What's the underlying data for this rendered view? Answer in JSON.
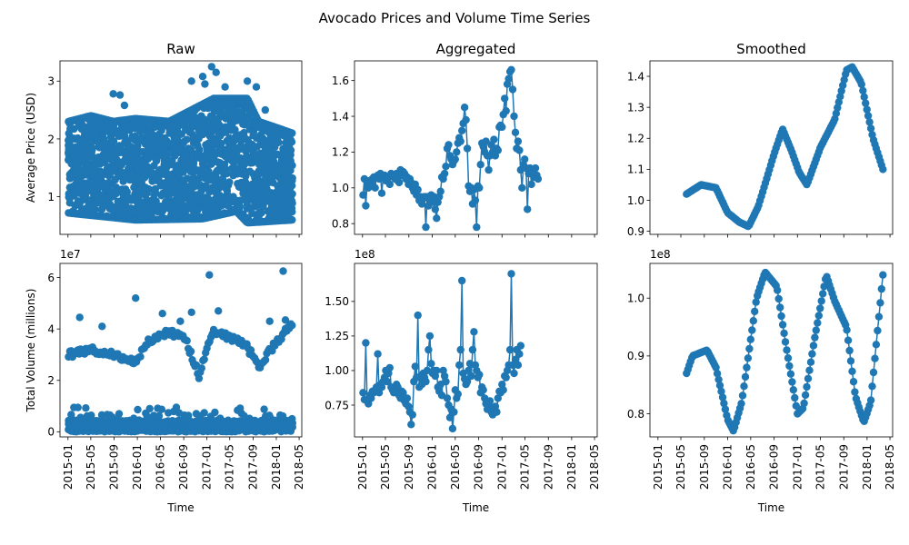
{
  "figure": {
    "title": "Avocado Prices and Volume Time Series",
    "accent": "#1f77b4"
  },
  "chart_data": [
    {
      "id": "price-raw",
      "type": "scatter",
      "column": "Raw",
      "row": "price",
      "title": "Raw",
      "xlabel": "",
      "ylabel": "Average Price (USD)",
      "x_range": [
        "2014-11-20",
        "2018-05-15"
      ],
      "ylim": [
        0.35,
        3.35
      ],
      "yticks": [
        1,
        2,
        3
      ],
      "ytick_labels": [
        "1",
        "2",
        "3"
      ],
      "offset_text": "",
      "scatter_spec": {
        "date_start": "2015-01-04",
        "date_end": "2018-03-25",
        "points_per_week": 10,
        "low": [
          [
            0.0,
            0.72
          ],
          [
            0.3,
            0.6
          ],
          [
            0.6,
            0.62
          ],
          [
            0.75,
            0.75
          ],
          [
            0.8,
            0.55
          ],
          [
            1.0,
            0.6
          ]
        ],
        "high": [
          [
            0.0,
            2.3
          ],
          [
            0.1,
            2.4
          ],
          [
            0.2,
            2.3
          ],
          [
            0.3,
            2.35
          ],
          [
            0.45,
            2.3
          ],
          [
            0.6,
            2.6
          ],
          [
            0.65,
            2.7
          ],
          [
            0.8,
            2.7
          ],
          [
            0.85,
            2.3
          ],
          [
            1.0,
            2.1
          ]
        ],
        "outliers": [
          [
            0.2,
            2.78
          ],
          [
            0.23,
            2.76
          ],
          [
            0.25,
            2.58
          ],
          [
            0.55,
            3.0
          ],
          [
            0.6,
            3.08
          ],
          [
            0.61,
            2.95
          ],
          [
            0.64,
            3.25
          ],
          [
            0.66,
            3.15
          ],
          [
            0.7,
            2.9
          ],
          [
            0.73,
            2.62
          ],
          [
            0.8,
            3.0
          ],
          [
            0.84,
            2.9
          ],
          [
            0.88,
            2.5
          ]
        ]
      }
    },
    {
      "id": "price-agg",
      "type": "line",
      "column": "Aggregated",
      "row": "price",
      "title": "Aggregated",
      "xlabel": "",
      "ylabel": "",
      "x_range": [
        "2014-11-20",
        "2018-05-15"
      ],
      "ylim": [
        0.74,
        1.71
      ],
      "yticks": [
        0.8,
        1.0,
        1.2,
        1.4,
        1.6
      ],
      "ytick_labels": [
        "0.8",
        "1.0",
        "1.2",
        "1.4",
        "1.6"
      ],
      "offset_text": "",
      "series": [
        {
          "start_date": "2015-01-04",
          "step_days": 7,
          "values": [
            0.96,
            1.05,
            0.9,
            1.03,
            1.0,
            1.04,
            1.02,
            1.05,
            1.06,
            1.0,
            1.06,
            1.07,
            1.05,
            1.08,
            0.97,
            1.06,
            1.07,
            1.04,
            1.05,
            1.06,
            1.02,
            1.08,
            1.07,
            1.06,
            1.05,
            1.08,
            1.04,
            1.03,
            1.1,
            1.07,
            1.09,
            1.08,
            1.05,
            1.06,
            1.02,
            1.05,
            1.03,
            1.0,
            0.98,
            1.02,
            0.96,
            0.99,
            0.93,
            0.95,
            0.91,
            0.94,
            0.95,
            0.78,
            0.95,
            0.9,
            0.93,
            0.96,
            0.92,
            0.95,
            0.88,
            0.83,
            0.92,
            0.95,
            0.98,
            1.06,
            1.05,
            1.08,
            1.12,
            1.22,
            1.24,
            1.18,
            1.16,
            1.13,
            1.15,
            1.16,
            1.2,
            1.25,
            1.28,
            1.26,
            1.32,
            1.36,
            1.45,
            1.38,
            1.22,
            1.01,
            0.98,
            1.0,
            0.91,
            0.99,
            0.93,
            0.78,
            1.01,
            1.0,
            1.13,
            1.25,
            1.23,
            1.2,
            1.26,
            1.18,
            1.1,
            1.18,
            1.24,
            1.2,
            1.27,
            1.18,
            1.22,
            1.21,
            1.34,
            1.35,
            1.34,
            1.41,
            1.5,
            1.43,
            1.58,
            1.61,
            1.65,
            1.66,
            1.55,
            1.4,
            1.31,
            1.22,
            1.26,
            1.21,
            1.1,
            1.0,
            1.13,
            1.16,
            1.11,
            0.88,
            1.08,
            1.11,
            1.02,
            1.08,
            1.06,
            1.11,
            1.07,
            1.05
          ]
        }
      ]
    },
    {
      "id": "price-smooth",
      "type": "line",
      "column": "Smoothed",
      "row": "price",
      "title": "Smoothed",
      "xlabel": "",
      "ylabel": "",
      "x_range": [
        "2014-11-20",
        "2018-05-15"
      ],
      "ylim": [
        0.89,
        1.45
      ],
      "yticks": [
        0.9,
        1.0,
        1.1,
        1.2,
        1.3,
        1.4
      ],
      "ytick_labels": [
        "0.9",
        "1.0",
        "1.1",
        "1.2",
        "1.3",
        "1.4"
      ],
      "offset_text": "",
      "series": [
        {
          "start_date": "2015-05-31",
          "step_days": 7,
          "keypoints": [
            [
              "2015-05-31",
              1.02
            ],
            [
              "2015-08-15",
              1.05
            ],
            [
              "2015-11-01",
              1.04
            ],
            [
              "2016-01-01",
              0.96
            ],
            [
              "2016-03-01",
              0.93
            ],
            [
              "2016-04-20",
              0.915
            ],
            [
              "2016-06-10",
              0.98
            ],
            [
              "2016-09-01",
              1.15
            ],
            [
              "2016-10-15",
              1.23
            ],
            [
              "2016-12-01",
              1.16
            ],
            [
              "2017-01-10",
              1.09
            ],
            [
              "2017-02-20",
              1.05
            ],
            [
              "2017-05-01",
              1.17
            ],
            [
              "2017-07-15",
              1.26
            ],
            [
              "2017-09-15",
              1.42
            ],
            [
              "2017-10-15",
              1.43
            ],
            [
              "2017-12-01",
              1.38
            ],
            [
              "2018-02-01",
              1.2
            ],
            [
              "2018-03-25",
              1.1
            ]
          ]
        }
      ]
    },
    {
      "id": "volume-raw",
      "type": "scatter",
      "column": "Raw",
      "row": "volume",
      "title": "",
      "xlabel": "Time",
      "ylabel": "Total Volume (millions)",
      "x_range": [
        "2014-11-20",
        "2018-05-15"
      ],
      "ylim": [
        -2000000,
        65500000
      ],
      "yticks": [
        0,
        20000000,
        40000000,
        60000000
      ],
      "ytick_labels": [
        "0",
        "2",
        "4",
        "6"
      ],
      "offset_text": "1e7",
      "xtick_labels": [
        "2015-01",
        "2015-05",
        "2015-09",
        "2016-01",
        "2016-05",
        "2016-09",
        "2017-01",
        "2017-05",
        "2017-09",
        "2018-01",
        "2018-05"
      ],
      "volume_spec": {
        "date_start": "2015-01-04",
        "date_end": "2018-03-25",
        "upper_band_keypoints": [
          [
            "2015-01-04",
            30000000
          ],
          [
            "2015-05-01",
            32000000
          ],
          [
            "2015-09-01",
            30000000
          ],
          [
            "2015-12-20",
            27000000
          ],
          [
            "2016-03-01",
            35000000
          ],
          [
            "2016-06-15",
            39000000
          ],
          [
            "2016-09-10",
            36000000
          ],
          [
            "2016-11-20",
            22000000
          ],
          [
            "2017-02-01",
            39000000
          ],
          [
            "2017-06-01",
            36000000
          ],
          [
            "2017-08-01",
            33000000
          ],
          [
            "2017-10-01",
            25000000
          ],
          [
            "2018-01-01",
            35000000
          ],
          [
            "2018-03-25",
            42000000
          ]
        ],
        "outliers": [
          [
            0.05,
            44500000
          ],
          [
            0.15,
            41000000
          ],
          [
            0.3,
            52000000
          ],
          [
            0.42,
            46000000
          ],
          [
            0.5,
            43000000
          ],
          [
            0.55,
            46500000
          ],
          [
            0.63,
            61000000
          ],
          [
            0.67,
            47000000
          ],
          [
            0.9,
            43000000
          ],
          [
            0.96,
            62500000
          ],
          [
            0.97,
            43500000
          ]
        ]
      }
    },
    {
      "id": "volume-agg",
      "type": "line",
      "column": "Aggregated",
      "row": "volume",
      "title": "",
      "xlabel": "Time",
      "ylabel": "",
      "x_range": [
        "2014-11-20",
        "2018-05-15"
      ],
      "ylim": [
        52000000,
        177500000
      ],
      "yticks": [
        75000000,
        100000000,
        125000000,
        150000000
      ],
      "ytick_labels": [
        "0.75",
        "1.00",
        "1.25",
        "1.50"
      ],
      "offset_text": "1e8",
      "xtick_labels": [
        "2015-01",
        "2015-05",
        "2015-09",
        "2016-01",
        "2016-05",
        "2016-09",
        "2017-01",
        "2017-05",
        "2017-09",
        "2018-01",
        "2018-05"
      ],
      "series": [
        {
          "start_date": "2015-01-04",
          "step_days": 7,
          "values": [
            84000000,
            79000000,
            120000000,
            78000000,
            76000000,
            82000000,
            80000000,
            85000000,
            84000000,
            86000000,
            88000000,
            112000000,
            84000000,
            90000000,
            88000000,
            92000000,
            95000000,
            100000000,
            92000000,
            98000000,
            102000000,
            88000000,
            86000000,
            84000000,
            85000000,
            90000000,
            88000000,
            82000000,
            80000000,
            85000000,
            84000000,
            78000000,
            76000000,
            80000000,
            74000000,
            70000000,
            61000000,
            68000000,
            92000000,
            103000000,
            95000000,
            140000000,
            88000000,
            96000000,
            90000000,
            98000000,
            95000000,
            92000000,
            100000000,
            115000000,
            125000000,
            105000000,
            98000000,
            100000000,
            96000000,
            100000000,
            88000000,
            85000000,
            90000000,
            82000000,
            100000000,
            96000000,
            92000000,
            80000000,
            75000000,
            66000000,
            72000000,
            58000000,
            70000000,
            86000000,
            80000000,
            83000000,
            104000000,
            115000000,
            165000000,
            98000000,
            94000000,
            90000000,
            92000000,
            100000000,
            105000000,
            96000000,
            115000000,
            128000000,
            104000000,
            100000000,
            95000000,
            97000000,
            84000000,
            88000000,
            86000000,
            80000000,
            76000000,
            72000000,
            75000000,
            78000000,
            70000000,
            68000000,
            72000000,
            74000000,
            70000000,
            80000000,
            85000000,
            84000000,
            90000000,
            86000000,
            96000000,
            95000000,
            100000000,
            104000000,
            115000000,
            170000000,
            104000000,
            98000000,
            108000000,
            115000000,
            104000000,
            112000000,
            118000000
          ]
        }
      ]
    },
    {
      "id": "volume-smooth",
      "type": "line",
      "column": "Smoothed",
      "row": "volume",
      "title": "",
      "xlabel": "Time",
      "ylabel": "",
      "x_range": [
        "2014-11-20",
        "2018-05-15"
      ],
      "ylim": [
        76000000,
        106000000
      ],
      "yticks": [
        80000000,
        90000000,
        100000000
      ],
      "ytick_labels": [
        "0.8",
        "0.9",
        "1.0"
      ],
      "offset_text": "1e8",
      "xtick_labels": [
        "2015-01",
        "2015-05",
        "2015-09",
        "2016-01",
        "2016-05",
        "2016-09",
        "2017-01",
        "2017-05",
        "2017-09",
        "2018-01",
        "2018-05"
      ],
      "series": [
        {
          "start_date": "2015-05-31",
          "step_days": 7,
          "keypoints": [
            [
              "2015-05-31",
              87000000
            ],
            [
              "2015-07-01",
              90000000
            ],
            [
              "2015-09-15",
              91000000
            ],
            [
              "2015-11-01",
              88000000
            ],
            [
              "2016-01-01",
              79000000
            ],
            [
              "2016-02-01",
              77000000
            ],
            [
              "2016-03-15",
              82000000
            ],
            [
              "2016-06-01",
              100000000
            ],
            [
              "2016-07-15",
              104500000
            ],
            [
              "2016-09-15",
              102000000
            ],
            [
              "2016-11-01",
              92000000
            ],
            [
              "2017-01-01",
              80000000
            ],
            [
              "2017-02-01",
              81000000
            ],
            [
              "2017-04-01",
              93000000
            ],
            [
              "2017-06-01",
              104000000
            ],
            [
              "2017-07-15",
              99500000
            ],
            [
              "2017-09-15",
              95000000
            ],
            [
              "2017-11-01",
              83000000
            ],
            [
              "2017-12-15",
              78500000
            ],
            [
              "2018-01-20",
              82000000
            ],
            [
              "2018-03-25",
              104000000
            ]
          ]
        }
      ]
    }
  ]
}
